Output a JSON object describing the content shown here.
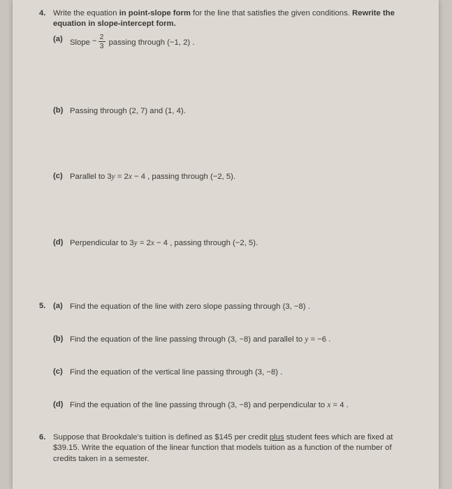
{
  "colors": {
    "outer_bg": "#c9c4bd",
    "page_bg": "#ddd8d1",
    "text": "#3a3834"
  },
  "typography": {
    "font_family": "Segoe UI / Helvetica / Arial",
    "base_size_pt": 8.5,
    "line_height": 1.35
  },
  "q4": {
    "number": "4.",
    "stem_a": "Write the equation ",
    "stem_b": "in point-slope form",
    "stem_c": " for the line that satisfies the given conditions. ",
    "stem_d": "Rewrite the equation in slope-intercept form.",
    "a": {
      "label": "(a)",
      "pre": "Slope ",
      "neg": "−",
      "frac_num": "2",
      "frac_den": "3",
      "post": " passing through (−1, 2) ."
    },
    "b": {
      "label": "(b)",
      "text": "Passing through (2, 7)  and (1, 4)."
    },
    "c": {
      "label": "(c)",
      "pre": "Parallel to  3",
      "eq": " = 2",
      "post": " − 4 , passing through (−2, 5)."
    },
    "d": {
      "label": "(d)",
      "pre": "Perpendicular to  3",
      "eq": " = 2",
      "post": " − 4 , passing through (−2, 5)."
    }
  },
  "q5": {
    "number": "5.",
    "a": {
      "label": "(a)",
      "text": "Find the equation of the line with zero slope passing through (3, −8) ."
    },
    "b": {
      "label": "(b)",
      "pre": "Find the equation of the line passing through (3, −8)  and parallel to  ",
      "eq_lhs": "y",
      "eq_rhs": " = −6 ."
    },
    "c": {
      "label": "(c)",
      "text": "Find the equation of the vertical line passing through (3, −8) ."
    },
    "d": {
      "label": "(d)",
      "pre": "Find the equation of the line passing through (3, −8)  and perpendicular to  ",
      "eq_lhs": "x",
      "eq_rhs": " = 4 ."
    }
  },
  "q6": {
    "number": "6.",
    "pre": "Suppose that Brookdale's tuition is defined as $145 per credit ",
    "u": "plus",
    "post": " student fees which are fixed at $39.15. Write the equation of the linear function that models tuition as a function of the number of credits taken in a semester."
  }
}
